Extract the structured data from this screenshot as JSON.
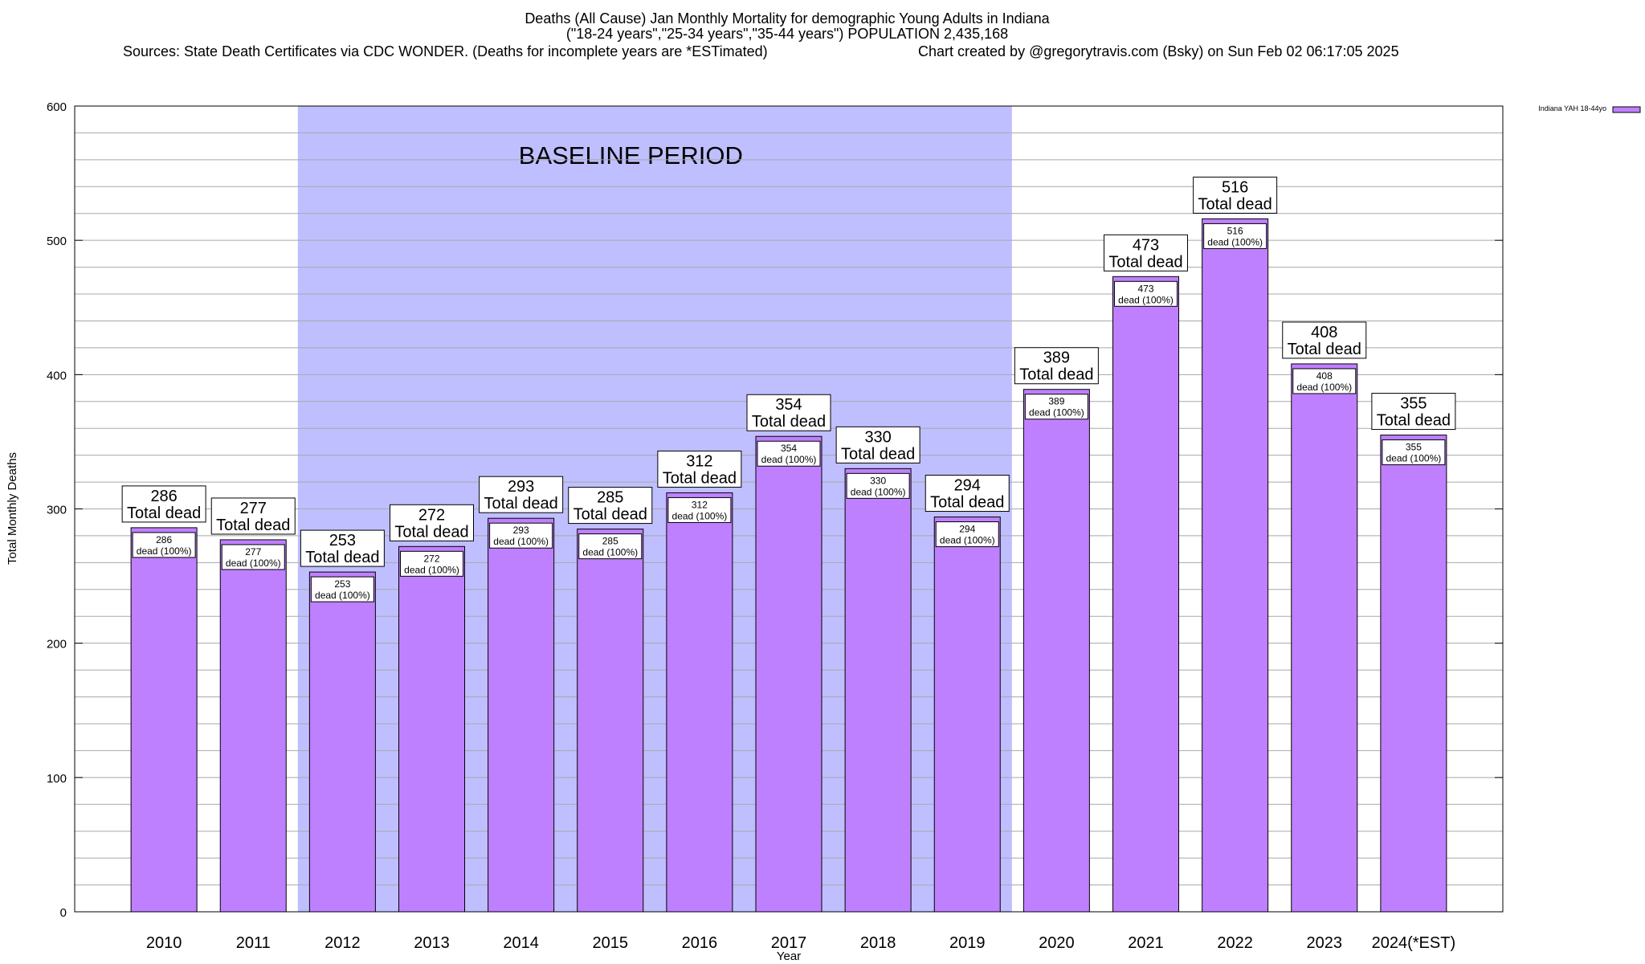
{
  "chart_data": {
    "type": "bar",
    "title_lines": [
      "Deaths (All Cause) Jan Monthly Mortality for demographic Young Adults in Indiana",
      "(\"18-24 years\",\"25-34 years\",\"35-44 years\") POPULATION 2,435,168"
    ],
    "sources": "Sources: State Death Certificates via CDC WONDER. (Deaths for incomplete years are *ESTimated)",
    "credit": "Chart created by @gregorytravis.com (Bsky) on Sun Feb 02 06:17:05 2025",
    "xlabel": "Year",
    "ylabel": "Total Monthly Deaths",
    "ylim": [
      0,
      600
    ],
    "yticks": [
      0,
      100,
      200,
      300,
      400,
      500,
      600
    ],
    "grid": true,
    "categories": [
      "2010",
      "2011",
      "2012",
      "2013",
      "2014",
      "2015",
      "2016",
      "2017",
      "2018",
      "2019",
      "2020",
      "2021",
      "2022",
      "2023",
      "2024(*EST)"
    ],
    "series": [
      {
        "name": "Indiana YAH 18-44yo",
        "color": "#bf80ff",
        "values": [
          286,
          277,
          253,
          272,
          293,
          285,
          312,
          354,
          330,
          294,
          389,
          473,
          516,
          408,
          355
        ]
      }
    ],
    "total_label_suffix": "Total dead",
    "inner_label_suffix": "dead (100%)",
    "baseline": {
      "label": "BASELINE PERIOD",
      "start": "2012",
      "end": "2019",
      "color": "#bfbfff"
    },
    "legend_position": "top-right"
  }
}
